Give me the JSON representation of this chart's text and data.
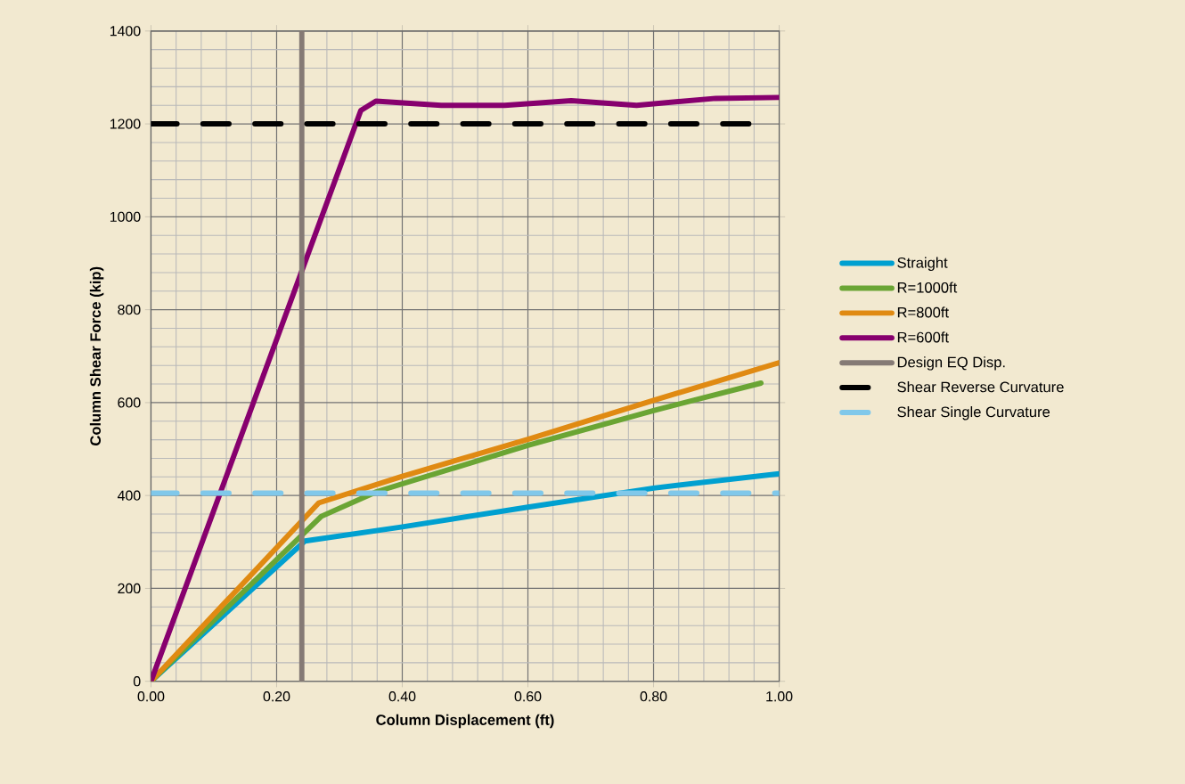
{
  "chart_data": {
    "type": "line",
    "xlabel": "Column Displacement (ft)",
    "ylabel": "Column Shear Force (kip)",
    "xlim": [
      0,
      1
    ],
    "ylim": [
      0,
      1400
    ],
    "xticks": [
      {
        "value": 0,
        "label": "0.00"
      },
      {
        "value": 0.2,
        "label": "0.20"
      },
      {
        "value": 0.4,
        "label": "0.40"
      },
      {
        "value": 0.6,
        "label": "0.60"
      },
      {
        "value": 0.8,
        "label": "0.80"
      },
      {
        "value": 1,
        "label": "1.00"
      }
    ],
    "yticks": [
      0,
      200,
      400,
      600,
      800,
      1000,
      1200,
      1400
    ],
    "grid": true,
    "legend": "right",
    "line_style": "solid",
    "series": [
      {
        "name": "Straight",
        "color": "#00a0d0",
        "x": [
          0,
          0.245,
          0.398,
          0.6,
          0.8,
          1.0
        ],
        "values": [
          0,
          302,
          332,
          375,
          416,
          447
        ]
      },
      {
        "name": "R=1000ft",
        "color": "#6aa534",
        "x": [
          0,
          0.271,
          0.359,
          0.6,
          0.8,
          0.971
        ],
        "values": [
          0,
          355,
          408,
          508,
          583,
          642
        ]
      },
      {
        "name": "R=800ft",
        "color": "#e08a12",
        "x": [
          0,
          0.267,
          0.399,
          0.6,
          0.8,
          1.0
        ],
        "values": [
          0,
          384,
          441,
          521,
          605,
          686
        ]
      },
      {
        "name": "R=600ft",
        "color": "#87006e",
        "x": [
          0,
          0.334,
          0.358,
          0.462,
          0.563,
          0.669,
          0.773,
          0.899,
          1.0
        ],
        "values": [
          0,
          1229,
          1249,
          1240,
          1240,
          1250,
          1240,
          1255,
          1257
        ]
      },
      {
        "name": "Design EQ Disp.",
        "color": "#857a75",
        "x": [
          0.24,
          0.24
        ],
        "values": [
          0,
          1400
        ]
      },
      {
        "name": "Shear Reverse Curvature",
        "color": "#000000",
        "line_style": "dashed",
        "x": [
          0,
          0.96
        ],
        "values": [
          1200,
          1200
        ]
      },
      {
        "name": "Shear Single Curvature",
        "color": "#80c8ea",
        "line_style": "dashed",
        "x": [
          0,
          1.0
        ],
        "values": [
          405,
          405
        ]
      }
    ]
  }
}
